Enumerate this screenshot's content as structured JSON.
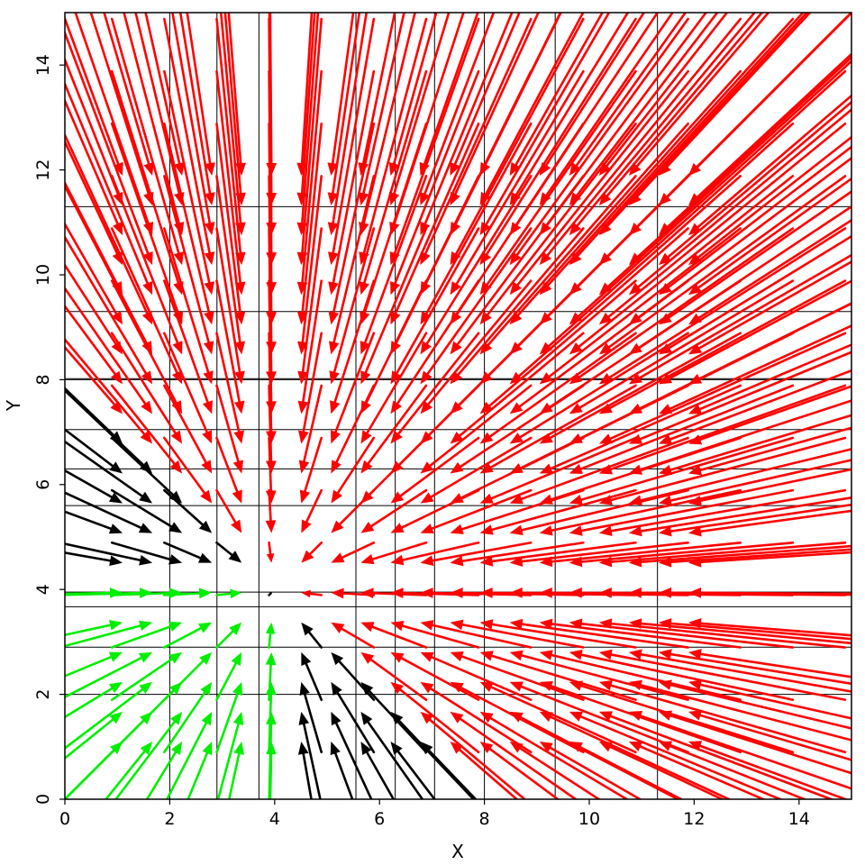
{
  "chart_data": {
    "type": "vector_field",
    "xlabel": "X",
    "ylabel": "Y",
    "xlim": [
      0,
      15
    ],
    "ylim": [
      0,
      15
    ],
    "x_ticks": [
      0,
      2,
      4,
      6,
      8,
      10,
      12,
      14
    ],
    "y_ticks": [
      0,
      2,
      4,
      6,
      8,
      10,
      12,
      14
    ],
    "grid": "irregular",
    "grid_x": [
      2.0,
      2.9,
      3.7,
      5.55,
      6.3,
      7.05,
      8.0,
      9.35,
      11.3
    ],
    "grid_y": [
      2.0,
      2.9,
      3.67,
      3.95,
      5.6,
      6.3,
      7.05,
      8.0,
      8.02,
      9.3,
      11.3
    ],
    "sample_spacing": 0.7833,
    "field": {
      "description": "vector at (x,y) = (4 - x, 4 - y)",
      "sink_point": [
        4,
        4
      ],
      "color_rule": "green where both components point away from origin-side (u>0.2 and v>0.2 region left/below sink), red where pointing toward lower-left, black near the boundary between them"
    },
    "colors": {
      "positive": "#00ee00",
      "negative": "#ff0000",
      "boundary": "#000000"
    }
  }
}
